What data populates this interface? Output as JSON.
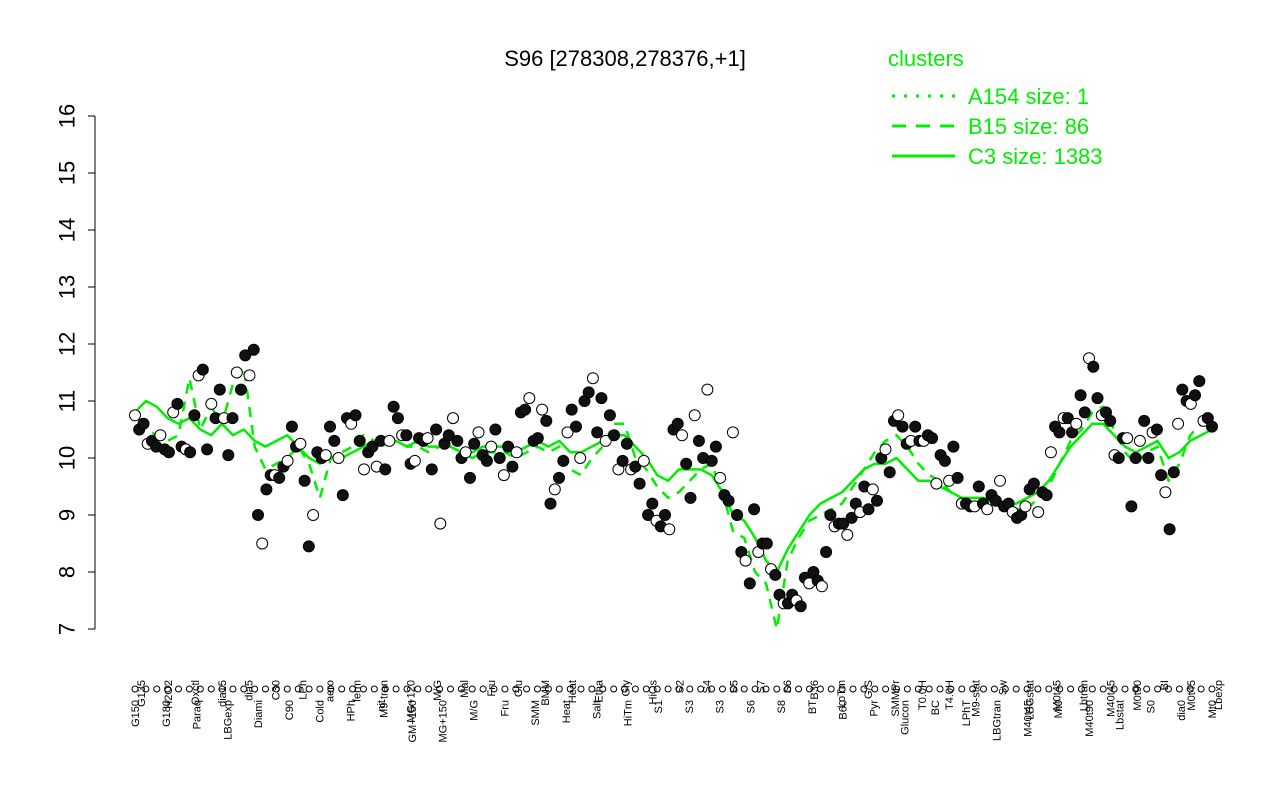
{
  "chart_data": {
    "type": "line",
    "title": "S96 [278308,278376,+1]",
    "xlabel": "",
    "ylabel": "",
    "ylim": [
      7,
      16
    ],
    "y_ticks": [
      7,
      8,
      9,
      10,
      11,
      12,
      13,
      14,
      15,
      16
    ],
    "x_tick_labels": [
      "G150",
      "G180",
      "G135",
      "Paraq",
      "H2O2",
      "LBGexpo",
      "Oxctl",
      "dia15",
      "Diami",
      "dia5",
      "C90",
      "C30",
      "Cold",
      "LPh",
      "HPh",
      "aero",
      "nit",
      "ferm",
      "GM+150",
      "MG+150",
      "M9-tran",
      "MG+120",
      "GM+90",
      "MG+60",
      "MG+45",
      "MG+25",
      "MG+15",
      "MG+10",
      "MG+5",
      "MG-0.2",
      "GM-0.1",
      "GM-0.2",
      "GM-10",
      "GM-15",
      "GM-25",
      "GM-45",
      "GM-60",
      "GM-90",
      "GM-120",
      "M9-exp",
      "M/G",
      "Mal",
      "Fru",
      "Glu",
      "SMM",
      "BMM",
      "Heat",
      "Etha",
      "Salt",
      "Gly",
      "HiTm",
      "HiOs",
      "S1",
      "S2",
      "S3",
      "S4",
      "S5",
      "S6",
      "S7",
      "S8",
      "BT",
      "B36",
      "B60",
      "LoTm",
      "Pyr",
      "G/S",
      "Glucon",
      "SMMPr",
      "T-5.40H",
      "T-3.40H",
      "T-2.40H",
      "T-1.40H",
      "T-0.40H",
      "T0.0H",
      "T0.30H",
      "T1.0H",
      "T2.0H",
      "T3.0H",
      "T4.0H",
      "T5.0H",
      "M9-stat",
      "BC",
      "Sw",
      "LPhT",
      "LBGstat",
      "LBGtran",
      "M40t45",
      "M0t45",
      "Lbtran",
      "Mt0",
      "M40t90",
      "M0t90",
      "Lbstat",
      "BI",
      "S0",
      "dia0",
      "Lbexp",
      "M0t45b",
      "Mt0b",
      "Lbexpb"
    ],
    "x_tick_labels_visible_top": [
      "G135",
      "H2O2",
      "Oxctl",
      "dia15",
      "dia5",
      "C30",
      "LPh",
      "aero",
      "ferm",
      "M9-tran",
      "MG+120",
      "M/G",
      "Mal",
      "Fru",
      "Glu",
      "BMM",
      "Heat",
      "Etha",
      "Gly",
      "HiOs",
      "S2",
      "S4",
      "S5",
      "S7",
      "S6",
      "B36",
      "LoTm",
      "G/S",
      "SMMPr",
      "T0.0H",
      "T4.0H",
      "M9-stat",
      "Sw",
      "LBGstat",
      "M0t45",
      "Lbtran",
      "M40t45",
      "M0t90",
      "BI",
      "M0t45",
      "Lbexp"
    ],
    "x_tick_labels_visible_bottom": [
      "G150",
      "G180",
      "Paraq",
      "LBGexp",
      "Diami",
      "C90",
      "Cold",
      "HPh",
      "nit",
      "GM+150",
      "MG+150",
      "M/G",
      "Fru",
      "SMM",
      "Heat",
      "Salt",
      "HiTm",
      "S1",
      "S3",
      "S3",
      "S6",
      "S8",
      "BT",
      "B60",
      "Pyr",
      "Glucon",
      "BC",
      "LPhT",
      "LBGtran",
      "M40t45",
      "Mt0",
      "M40t90",
      "Lbstat",
      "S0",
      "dia0",
      "Mt0"
    ],
    "series": [
      {
        "style": "solid",
        "color": "#00ee00",
        "values": [
          10.8,
          11.0,
          10.9,
          10.7,
          10.6,
          10.7,
          10.5,
          10.4,
          10.6,
          10.4,
          10.5,
          10.3,
          10.2,
          10.3,
          10.4,
          10.2,
          10.0,
          9.9,
          10.0,
          10.0,
          10.1,
          10.2,
          10.3,
          10.3,
          10.3,
          10.2,
          10.3,
          10.2,
          10.2,
          10.2,
          10.1,
          10.1,
          10.2,
          10.2,
          10.2,
          10.1,
          10.2,
          10.3,
          10.2,
          10.3,
          10.1,
          10.1,
          10.2,
          10.3,
          10.4,
          10.4,
          10.2,
          10.0,
          9.7,
          9.6,
          9.8,
          9.8,
          9.8,
          9.7,
          9.4,
          9.0,
          8.9,
          8.6,
          8.2,
          8.0,
          8.4,
          8.7,
          9.0,
          9.2,
          9.3,
          9.4,
          9.6,
          9.8,
          9.9,
          9.9,
          10.0,
          9.8,
          9.6,
          9.6,
          9.5,
          9.4,
          9.3,
          9.3,
          9.3,
          9.2,
          9.2,
          9.2,
          9.3,
          9.4,
          9.6,
          9.9,
          10.2,
          10.4,
          10.6,
          10.6,
          10.4,
          10.2,
          10.1,
          10.2,
          10.3,
          10.0,
          10.1,
          10.3,
          10.4,
          10.5
        ]
      },
      {
        "style": "dashed",
        "color": "#00ee00",
        "values": [
          10.5,
          10.5,
          10.4,
          10.3,
          10.4,
          11.4,
          10.5,
          10.9,
          10.6,
          11.3,
          11.6,
          10.2,
          9.8,
          9.9,
          10.0,
          10.2,
          9.9,
          9.3,
          10.0,
          10.1,
          10.2,
          10.4,
          10.3,
          10.2,
          10.3,
          10.2,
          10.2,
          10.1,
          10.2,
          10.2,
          10.1,
          10.0,
          10.1,
          10.1,
          10.1,
          10.0,
          10.1,
          10.2,
          10.1,
          10.2,
          9.8,
          9.7,
          10.0,
          10.2,
          10.6,
          10.6,
          10.0,
          9.8,
          9.5,
          9.3,
          9.4,
          9.6,
          9.8,
          9.9,
          9.4,
          8.7,
          8.6,
          8.0,
          7.8,
          7.0,
          8.2,
          8.6,
          8.9,
          9.0,
          9.1,
          9.2,
          9.5,
          9.8,
          10.1,
          10.3,
          10.4,
          10.2,
          9.9,
          9.7,
          9.6,
          9.4,
          9.3,
          9.2,
          9.2,
          9.2,
          9.1,
          9.1,
          9.1,
          9.3,
          9.5,
          9.9,
          10.3,
          10.5,
          10.8,
          10.9,
          10.5,
          10.1,
          9.9,
          10.1,
          10.2,
          9.6,
          9.9,
          10.4,
          10.6,
          10.7
        ]
      }
    ],
    "points": [
      10.75,
      10.5,
      10.6,
      10.25,
      10.3,
      10.2,
      10.4,
      10.15,
      10.1,
      10.8,
      10.95,
      10.2,
      10.15,
      10.1,
      10.75,
      11.45,
      11.55,
      10.15,
      10.95,
      10.7,
      11.2,
      10.7,
      10.05,
      10.7,
      11.5,
      11.2,
      11.8,
      11.45,
      11.9,
      9.0,
      8.5,
      9.45,
      9.7,
      9.7,
      9.65,
      9.85,
      9.95,
      10.55,
      10.2,
      10.25,
      9.6,
      8.45,
      9.0,
      10.1,
      10.0,
      10.05,
      10.55,
      10.3,
      10.0,
      9.35,
      10.7,
      10.6,
      10.75,
      10.3,
      9.8,
      10.1,
      10.2,
      9.85,
      10.3,
      9.8,
      10.3,
      10.9,
      10.7,
      10.4,
      10.4,
      9.9,
      9.95,
      10.35,
      10.3,
      10.35,
      9.8,
      10.5,
      8.85,
      10.25,
      10.4,
      10.7,
      10.3,
      10.0,
      10.1,
      9.65,
      10.25,
      10.45,
      10.05,
      9.95,
      10.2,
      10.5,
      10.0,
      9.7,
      10.2,
      9.85,
      10.1,
      10.8,
      10.85,
      11.05,
      10.3,
      10.35,
      10.85,
      10.65,
      9.2,
      9.45,
      9.65,
      9.95,
      10.45,
      10.85,
      10.55,
      10.0,
      11.0,
      11.15,
      11.4,
      10.45,
      11.05,
      10.3,
      10.75,
      10.4,
      9.8,
      9.95,
      10.25,
      9.8,
      9.85,
      9.55,
      9.95,
      9.0,
      9.2,
      8.9,
      8.8,
      9.0,
      8.75,
      10.5,
      10.6,
      10.4,
      9.9,
      9.3,
      10.75,
      10.3,
      10.0,
      11.2,
      9.95,
      10.2,
      9.65,
      9.35,
      9.25,
      10.45,
      9.0,
      8.35,
      8.2,
      7.8,
      9.1,
      8.35,
      8.5,
      8.5,
      8.05,
      7.95,
      7.6,
      7.45,
      7.45,
      7.6,
      7.5,
      7.4,
      7.9,
      7.8,
      8.0,
      7.85,
      7.75,
      8.35,
      9.0,
      8.8,
      8.85,
      8.85,
      8.65,
      8.95,
      9.2,
      9.05,
      9.5,
      9.1,
      9.45,
      9.25,
      10.0,
      10.15,
      9.75,
      10.65,
      10.75,
      10.55,
      10.25,
      10.3,
      10.55,
      10.3,
      10.3,
      10.4,
      10.35,
      9.55,
      10.05,
      9.95,
      9.6,
      10.2,
      9.65,
      9.2,
      9.2,
      9.15,
      9.15,
      9.5,
      9.2,
      9.1,
      9.35,
      9.25,
      9.6,
      9.15,
      9.2,
      9.05,
      8.95,
      9.0,
      9.15,
      9.45,
      9.55,
      9.05,
      9.4,
      9.35,
      10.1,
      10.55,
      10.45,
      10.7,
      10.7,
      10.45,
      10.6,
      11.1,
      10.8,
      11.75,
      11.6,
      11.05,
      10.75,
      10.8,
      10.65,
      10.05,
      10.0,
      10.35,
      10.35,
      9.15,
      10.0,
      10.3,
      10.65,
      10.0,
      10.45,
      10.5,
      9.7,
      9.4,
      8.75,
      9.75,
      10.6,
      11.2,
      11.0,
      10.95,
      11.1,
      11.35,
      10.65,
      10.7,
      10.55
    ]
  }
}
